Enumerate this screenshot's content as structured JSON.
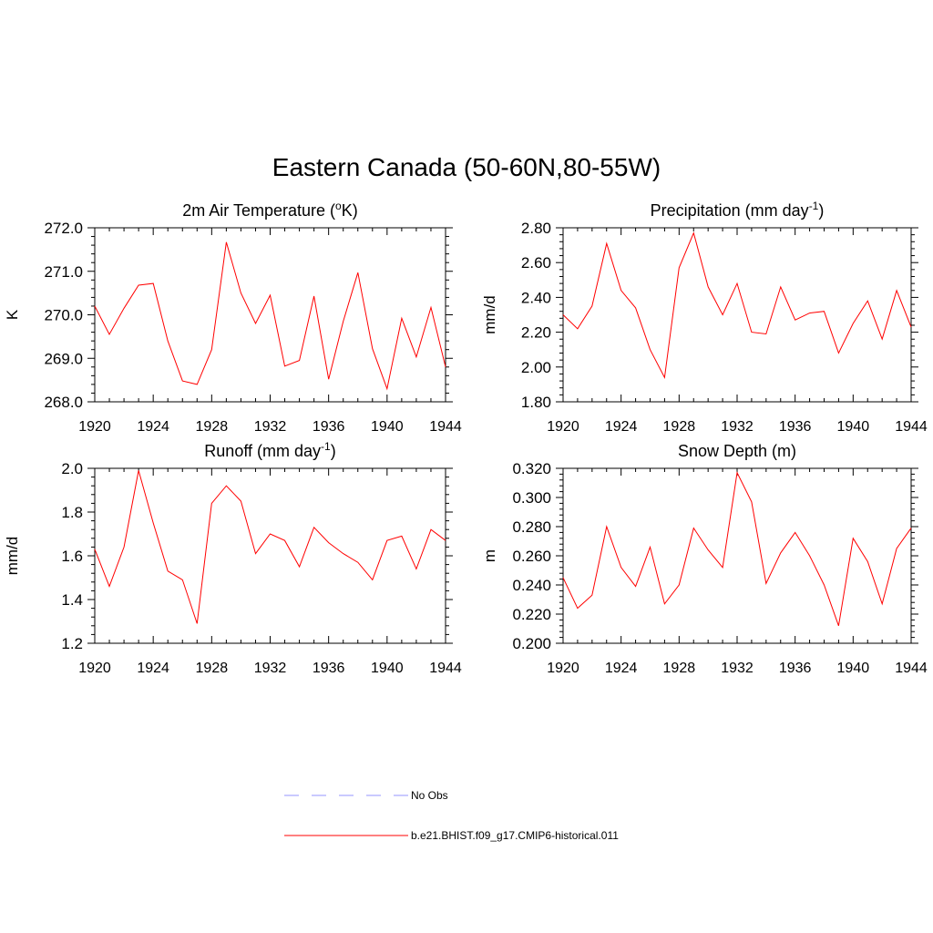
{
  "title": "Eastern Canada (50-60N,80-55W)",
  "colors": {
    "model": "#ff0000",
    "obs": "#aaaaff",
    "axis": "#000000"
  },
  "legend": {
    "entries": [
      {
        "label": "No Obs",
        "style": "dashed"
      },
      {
        "label": "b.e21.BHIST.f09_g17.CMIP6-historical.011",
        "style": "solid"
      }
    ]
  },
  "chart_data": [
    {
      "type": "line",
      "title": "2m Air Temperature (",
      "title_sup": "o",
      "title_after": "K)",
      "ylabel": "K",
      "xlim": [
        1920,
        1944
      ],
      "ylim": [
        268.0,
        272.0
      ],
      "xticks": [
        1920,
        1924,
        1928,
        1932,
        1936,
        1940,
        1944
      ],
      "yticks": [
        268.0,
        269.0,
        270.0,
        271.0,
        272.0
      ],
      "ytick_labels": [
        "268.0",
        "269.0",
        "270.0",
        "271.0",
        "272.0"
      ],
      "x": [
        1920,
        1921,
        1922,
        1923,
        1924,
        1925,
        1926,
        1927,
        1928,
        1929,
        1930,
        1931,
        1932,
        1933,
        1934,
        1935,
        1936,
        1937,
        1938,
        1939,
        1940,
        1941,
        1942,
        1943,
        1944
      ],
      "series": [
        {
          "name": "b.e21.BHIST.f09_g17.CMIP6-historical.011",
          "values": [
            270.2,
            269.55,
            270.15,
            270.68,
            270.72,
            269.4,
            268.48,
            268.4,
            269.2,
            271.67,
            270.5,
            269.8,
            270.45,
            268.82,
            268.95,
            270.43,
            268.52,
            269.85,
            270.97,
            269.22,
            268.3,
            269.92,
            269.03,
            270.17,
            268.8
          ]
        }
      ]
    },
    {
      "type": "line",
      "title": "Precipitation (mm day",
      "title_sup": "-1",
      "title_after": ")",
      "ylabel": "mm/d",
      "xlim": [
        1920,
        1944
      ],
      "ylim": [
        1.8,
        2.8
      ],
      "xticks": [
        1920,
        1924,
        1928,
        1932,
        1936,
        1940,
        1944
      ],
      "yticks": [
        1.8,
        2.0,
        2.2,
        2.4,
        2.6,
        2.8
      ],
      "ytick_labels": [
        "1.80",
        "2.00",
        "2.20",
        "2.40",
        "2.60",
        "2.80"
      ],
      "x": [
        1920,
        1921,
        1922,
        1923,
        1924,
        1925,
        1926,
        1927,
        1928,
        1929,
        1930,
        1931,
        1932,
        1933,
        1934,
        1935,
        1936,
        1937,
        1938,
        1939,
        1940,
        1941,
        1942,
        1943,
        1944
      ],
      "series": [
        {
          "name": "b.e21.BHIST.f09_g17.CMIP6-historical.011",
          "values": [
            2.3,
            2.22,
            2.35,
            2.71,
            2.44,
            2.34,
            2.1,
            1.94,
            2.57,
            2.77,
            2.46,
            2.3,
            2.48,
            2.2,
            2.19,
            2.46,
            2.27,
            2.31,
            2.32,
            2.08,
            2.25,
            2.38,
            2.16,
            2.44,
            2.23
          ]
        }
      ]
    },
    {
      "type": "line",
      "title": "Runoff (mm day",
      "title_sup": "-1",
      "title_after": ")",
      "ylabel": "mm/d",
      "xlim": [
        1920,
        1944
      ],
      "ylim": [
        1.2,
        2.0
      ],
      "xticks": [
        1920,
        1924,
        1928,
        1932,
        1936,
        1940,
        1944
      ],
      "yticks": [
        1.2,
        1.4,
        1.6,
        1.8,
        2.0
      ],
      "ytick_labels": [
        "1.2",
        "1.4",
        "1.6",
        "1.8",
        "2.0"
      ],
      "x": [
        1920,
        1921,
        1922,
        1923,
        1924,
        1925,
        1926,
        1927,
        1928,
        1929,
        1930,
        1931,
        1932,
        1933,
        1934,
        1935,
        1936,
        1937,
        1938,
        1939,
        1940,
        1941,
        1942,
        1943,
        1944
      ],
      "series": [
        {
          "name": "b.e21.BHIST.f09_g17.CMIP6-historical.011",
          "values": [
            1.63,
            1.46,
            1.64,
            1.99,
            1.75,
            1.53,
            1.49,
            1.29,
            1.84,
            1.92,
            1.85,
            1.61,
            1.7,
            1.67,
            1.55,
            1.73,
            1.66,
            1.61,
            1.57,
            1.49,
            1.67,
            1.69,
            1.54,
            1.72,
            1.67
          ]
        }
      ]
    },
    {
      "type": "line",
      "title": "Snow Depth (m)",
      "title_sup": "",
      "title_after": "",
      "ylabel": "m",
      "xlim": [
        1920,
        1944
      ],
      "ylim": [
        0.2,
        0.32
      ],
      "xticks": [
        1920,
        1924,
        1928,
        1932,
        1936,
        1940,
        1944
      ],
      "yticks": [
        0.2,
        0.22,
        0.24,
        0.26,
        0.28,
        0.3,
        0.32
      ],
      "ytick_labels": [
        "0.200",
        "0.220",
        "0.240",
        "0.260",
        "0.280",
        "0.300",
        "0.320"
      ],
      "x": [
        1920,
        1921,
        1922,
        1923,
        1924,
        1925,
        1926,
        1927,
        1928,
        1929,
        1930,
        1931,
        1932,
        1933,
        1934,
        1935,
        1936,
        1937,
        1938,
        1939,
        1940,
        1941,
        1942,
        1943,
        1944
      ],
      "series": [
        {
          "name": "b.e21.BHIST.f09_g17.CMIP6-historical.011",
          "values": [
            0.245,
            0.224,
            0.233,
            0.28,
            0.252,
            0.239,
            0.266,
            0.227,
            0.24,
            0.279,
            0.264,
            0.252,
            0.317,
            0.297,
            0.241,
            0.262,
            0.276,
            0.26,
            0.24,
            0.212,
            0.272,
            0.256,
            0.227,
            0.265,
            0.279
          ]
        }
      ]
    }
  ]
}
